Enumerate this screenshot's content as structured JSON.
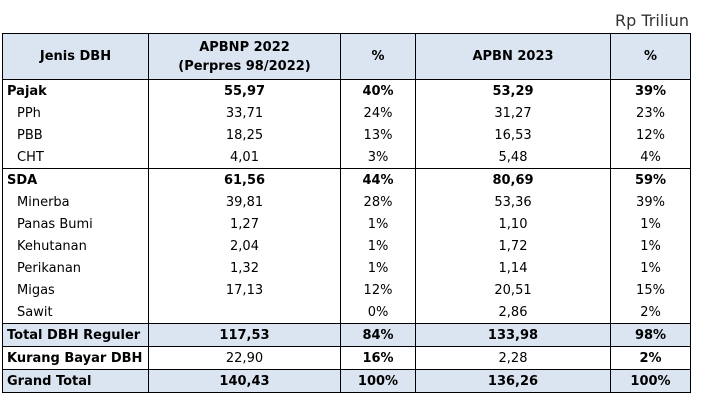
{
  "unit_note": "Rp Triliun",
  "table": {
    "header": [
      "Jenis DBH",
      "APBNP 2022\n(Perpres 98/2022)",
      "%",
      "APBN 2023",
      "%"
    ],
    "rows": [
      [
        "Pajak",
        "55,97",
        "40%",
        "53,29",
        "39%"
      ],
      [
        "PPh",
        "33,71",
        "24%",
        "31,27",
        "23%"
      ],
      [
        "PBB",
        "18,25",
        "13%",
        "16,53",
        "12%"
      ],
      [
        "CHT",
        "4,01",
        "3%",
        "5,48",
        "4%"
      ],
      [
        "SDA",
        "61,56",
        "44%",
        "80,69",
        "59%"
      ],
      [
        "Minerba",
        "39,81",
        "28%",
        "53,36",
        "39%"
      ],
      [
        "Panas Bumi",
        "1,27",
        "1%",
        "1,10",
        "1%"
      ],
      [
        "Kehutanan",
        "2,04",
        "1%",
        "1,72",
        "1%"
      ],
      [
        "Perikanan",
        "1,32",
        "1%",
        "1,14",
        "1%"
      ],
      [
        "Migas",
        "17,13",
        "12%",
        "20,51",
        "15%"
      ],
      [
        "Sawit",
        null,
        "0%",
        "2,86",
        "2%"
      ],
      [
        "Total DBH Reguler",
        "117,53",
        "84%",
        "133,98",
        "98%"
      ],
      [
        "Kurang Bayar DBH",
        "22,90",
        "16%",
        "2,28",
        "2%"
      ],
      [
        "Grand Total",
        "140,43",
        "100%",
        "136,26",
        "100%"
      ]
    ]
  }
}
